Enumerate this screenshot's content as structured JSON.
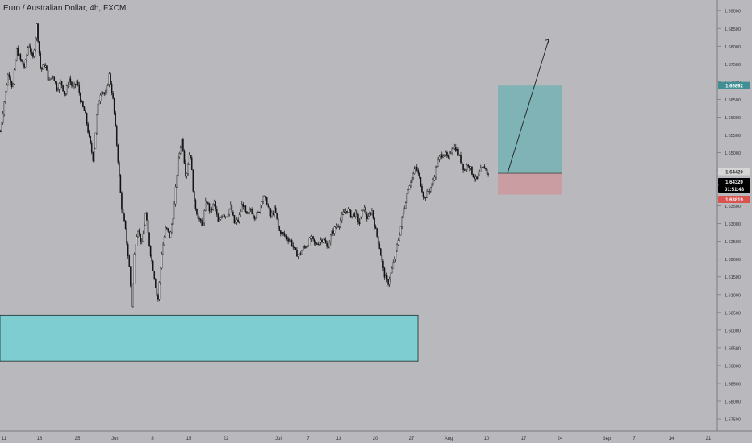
{
  "header": {
    "title": "Euro / Australian Dollar, 4h, FXCM"
  },
  "colors": {
    "background": "#b8b8bd",
    "candle": "#111111",
    "demand_zone": "#7ecdd0",
    "target_zone": "#7fb3b5",
    "stop_zone": "#c99da1",
    "target_badge": "#3f8f95",
    "stop_badge": "#d9534f",
    "price_badge": "#000000"
  },
  "price_labels": {
    "target": "1.66892",
    "entry": "1.64420",
    "current": "1.64320",
    "countdown": "01:51:48",
    "stop": "1.63819"
  },
  "chart_data": {
    "type": "candlestick",
    "title": "Euro / Australian Dollar, 4h, FXCM",
    "xlabel": "",
    "ylabel": "",
    "ylim": [
      1.5716,
      1.693
    ],
    "x_ticks": [
      "11",
      "18",
      "25",
      "Jun",
      "8",
      "15",
      "22",
      "Jul",
      "7",
      "13",
      "20",
      "27",
      "Aug",
      "10",
      "17",
      "24",
      "Sep",
      "7",
      "14",
      "21"
    ],
    "y_ticks": [
      "1.69000",
      "1.68500",
      "1.68000",
      "1.67500",
      "1.67000",
      "1.66500",
      "1.66000",
      "1.65500",
      "1.65000",
      "1.64500",
      "1.64000",
      "1.63500",
      "1.63000",
      "1.62500",
      "1.62000",
      "1.61500",
      "1.61000",
      "1.60500",
      "1.60000",
      "1.59500",
      "1.59000",
      "1.58500",
      "1.58000",
      "1.57500"
    ],
    "grid": false,
    "price_path_approx": [
      [
        0,
        1.656
      ],
      [
        5,
        1.665
      ],
      [
        10,
        1.673
      ],
      [
        15,
        1.668
      ],
      [
        20,
        1.679
      ],
      [
        25,
        1.676
      ],
      [
        30,
        1.674
      ],
      [
        35,
        1.681
      ],
      [
        40,
        1.676
      ],
      [
        45,
        1.686
      ],
      [
        50,
        1.673
      ],
      [
        55,
        1.675
      ],
      [
        60,
        1.67
      ],
      [
        65,
        1.672
      ],
      [
        70,
        1.668
      ],
      [
        75,
        1.67
      ],
      [
        80,
        1.666
      ],
      [
        85,
        1.671
      ],
      [
        90,
        1.668
      ],
      [
        95,
        1.67
      ],
      [
        100,
        1.664
      ],
      [
        105,
        1.661
      ],
      [
        110,
        1.654
      ],
      [
        115,
        1.648
      ],
      [
        120,
        1.662
      ],
      [
        125,
        1.668
      ],
      [
        130,
        1.666
      ],
      [
        135,
        1.672
      ],
      [
        140,
        1.664
      ],
      [
        145,
        1.65
      ],
      [
        150,
        1.635
      ],
      [
        155,
        1.628
      ],
      [
        160,
        1.617
      ],
      [
        163,
        1.606
      ],
      [
        166,
        1.622
      ],
      [
        170,
        1.629
      ],
      [
        175,
        1.624
      ],
      [
        180,
        1.633
      ],
      [
        185,
        1.623
      ],
      [
        190,
        1.616
      ],
      [
        195,
        1.608
      ],
      [
        200,
        1.622
      ],
      [
        205,
        1.629
      ],
      [
        210,
        1.626
      ],
      [
        215,
        1.634
      ],
      [
        220,
        1.648
      ],
      [
        225,
        1.654
      ],
      [
        230,
        1.643
      ],
      [
        235,
        1.651
      ],
      [
        240,
        1.636
      ],
      [
        245,
        1.632
      ],
      [
        250,
        1.629
      ],
      [
        255,
        1.637
      ],
      [
        260,
        1.633
      ],
      [
        265,
        1.636
      ],
      [
        270,
        1.63
      ],
      [
        275,
        1.633
      ],
      [
        280,
        1.632
      ],
      [
        285,
        1.635
      ],
      [
        290,
        1.63
      ],
      [
        295,
        1.631
      ],
      [
        300,
        1.636
      ],
      [
        305,
        1.632
      ],
      [
        310,
        1.634
      ],
      [
        315,
        1.632
      ],
      [
        320,
        1.633
      ],
      [
        325,
        1.638
      ],
      [
        330,
        1.636
      ],
      [
        335,
        1.632
      ],
      [
        340,
        1.634
      ],
      [
        345,
        1.628
      ],
      [
        350,
        1.627
      ],
      [
        355,
        1.626
      ],
      [
        360,
        1.625
      ],
      [
        365,
        1.622
      ],
      [
        370,
        1.621
      ],
      [
        375,
        1.623
      ],
      [
        380,
        1.624
      ],
      [
        385,
        1.626
      ],
      [
        390,
        1.624
      ],
      [
        395,
        1.625
      ],
      [
        400,
        1.626
      ],
      [
        405,
        1.623
      ],
      [
        410,
        1.627
      ],
      [
        415,
        1.629
      ],
      [
        420,
        1.63
      ],
      [
        425,
        1.633
      ],
      [
        430,
        1.634
      ],
      [
        435,
        1.632
      ],
      [
        440,
        1.633
      ],
      [
        445,
        1.63
      ],
      [
        450,
        1.635
      ],
      [
        455,
        1.631
      ],
      [
        460,
        1.634
      ],
      [
        465,
        1.628
      ],
      [
        470,
        1.623
      ],
      [
        475,
        1.616
      ],
      [
        480,
        1.613
      ],
      [
        485,
        1.617
      ],
      [
        490,
        1.622
      ],
      [
        495,
        1.628
      ],
      [
        500,
        1.634
      ],
      [
        505,
        1.64
      ],
      [
        510,
        1.643
      ],
      [
        515,
        1.646
      ],
      [
        520,
        1.642
      ],
      [
        525,
        1.637
      ],
      [
        530,
        1.639
      ],
      [
        535,
        1.641
      ],
      [
        540,
        1.646
      ],
      [
        545,
        1.649
      ],
      [
        550,
        1.65
      ],
      [
        555,
        1.648
      ],
      [
        560,
        1.652
      ],
      [
        565,
        1.651
      ],
      [
        570,
        1.648
      ],
      [
        575,
        1.645
      ],
      [
        580,
        1.647
      ],
      [
        585,
        1.644
      ],
      [
        590,
        1.642
      ],
      [
        595,
        1.645
      ],
      [
        600,
        1.646
      ],
      [
        605,
        1.6432
      ]
    ],
    "zones": {
      "demand_zone_price": [
        1.5913,
        1.6042
      ],
      "target_zone_price": [
        1.6442,
        1.6689
      ],
      "stop_zone_price": [
        1.6382,
        1.6442
      ],
      "entry_price": 1.6442
    },
    "annotation_arrow": {
      "from_price": 1.6442,
      "to_price": 1.6818
    }
  }
}
